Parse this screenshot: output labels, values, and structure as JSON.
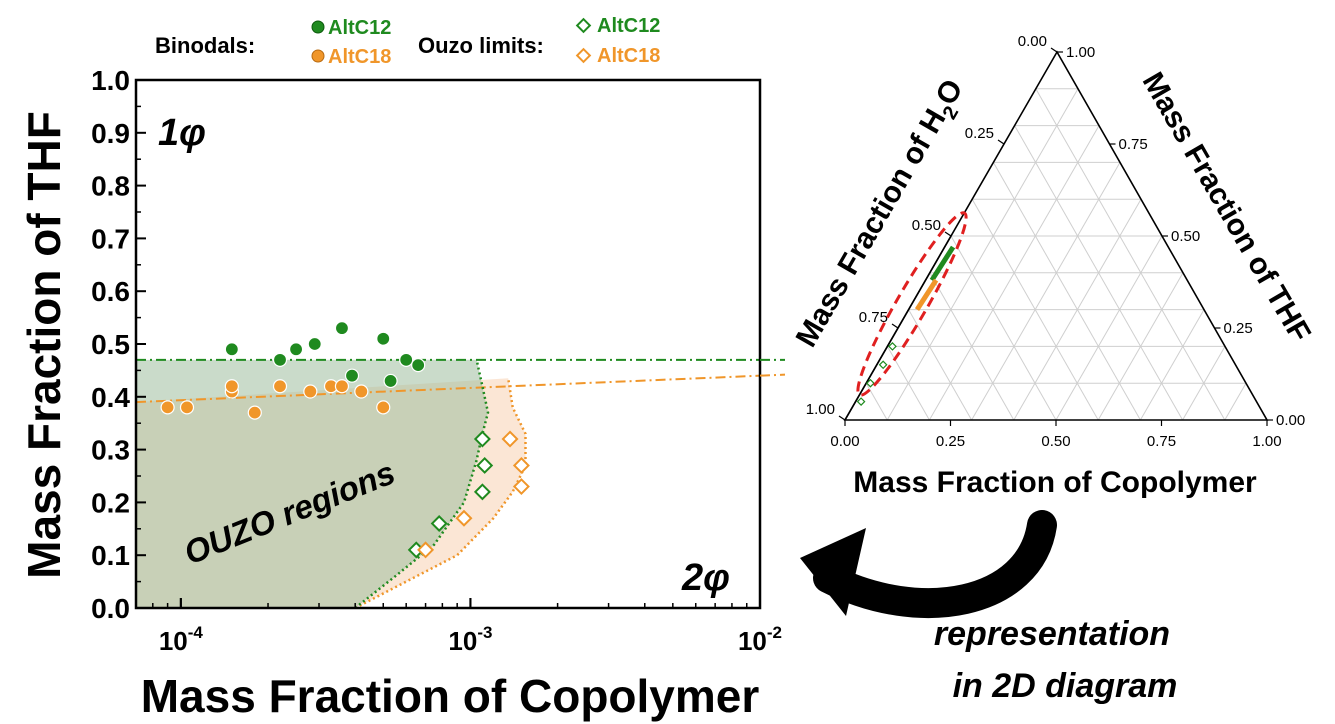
{
  "chart_data": [
    {
      "type": "scatter",
      "xscale": "log",
      "xlabel": "Mass Fraction of Copolymer",
      "ylabel": "Mass Fraction of THF",
      "xlim": [
        7e-05,
        0.01
      ],
      "ylim": [
        0,
        1.0
      ],
      "x_ticks": [
        0.0001,
        0.001,
        0.01
      ],
      "x_tick_labels": [
        {
          "base": "10",
          "exp": "-4"
        },
        {
          "base": "10",
          "exp": "-3"
        },
        {
          "base": "10",
          "exp": "-2"
        }
      ],
      "y_ticks": [
        "0.0",
        "0.1",
        "0.2",
        "0.3",
        "0.4",
        "0.5",
        "0.6",
        "0.7",
        "0.8",
        "0.9",
        "1.0"
      ],
      "legend": {
        "binodals_label": "Binodals:",
        "ouzo_label": "Ouzo limits:",
        "entries": [
          "AltC12",
          "AltC18"
        ]
      },
      "annotations": {
        "one_phase": "1φ",
        "two_phase": "2φ",
        "region": "OUZO regions"
      },
      "colors": {
        "AltC12": "#1f8a1f",
        "AltC18": "#f0962a"
      },
      "binodal_lines": [
        {
          "name": "AltC12",
          "y": 0.47
        },
        {
          "name": "AltC18",
          "x": [
            7e-05,
            0.01
          ],
          "y": [
            0.39,
            0.44
          ]
        }
      ],
      "ouzo_boundaries": [
        {
          "name": "AltC12",
          "x": [
            0.0004,
            0.00055,
            0.00075,
            0.00095,
            0.00105,
            0.0011,
            0.00115,
            0.0011,
            0.00105
          ],
          "y": [
            0.0,
            0.06,
            0.12,
            0.2,
            0.28,
            0.33,
            0.37,
            0.42,
            0.47
          ]
        },
        {
          "name": "AltC18",
          "x": [
            0.0004,
            0.0006,
            0.0009,
            0.0012,
            0.0014,
            0.00155,
            0.00155,
            0.0014,
            0.00135
          ],
          "y": [
            0.0,
            0.05,
            0.1,
            0.17,
            0.22,
            0.27,
            0.33,
            0.38,
            0.435
          ]
        }
      ],
      "series": [
        {
          "name": "AltC12",
          "kind": "binodal",
          "points": [
            [
              0.00015,
              0.49
            ],
            [
              0.00022,
              0.47
            ],
            [
              0.00025,
              0.49
            ],
            [
              0.00029,
              0.5
            ],
            [
              0.00036,
              0.53
            ],
            [
              0.00039,
              0.44
            ],
            [
              0.0005,
              0.51
            ],
            [
              0.00053,
              0.43
            ],
            [
              0.0006,
              0.47
            ],
            [
              0.00066,
              0.46
            ]
          ]
        },
        {
          "name": "AltC18",
          "kind": "binodal",
          "points": [
            [
              9e-05,
              0.38
            ],
            [
              0.000105,
              0.38
            ],
            [
              0.00015,
              0.41
            ],
            [
              0.00015,
              0.42
            ],
            [
              0.00018,
              0.37
            ],
            [
              0.00022,
              0.42
            ],
            [
              0.00028,
              0.41
            ],
            [
              0.00033,
              0.42
            ],
            [
              0.00036,
              0.42
            ],
            [
              0.00042,
              0.41
            ],
            [
              0.0005,
              0.38
            ]
          ]
        },
        {
          "name": "AltC12",
          "kind": "ouzo_limit",
          "points": [
            [
              0.00065,
              0.11
            ],
            [
              0.00078,
              0.16
            ],
            [
              0.0011,
              0.32
            ],
            [
              0.00112,
              0.27
            ],
            [
              0.0011,
              0.22
            ]
          ]
        },
        {
          "name": "AltC18",
          "kind": "ouzo_limit",
          "points": [
            [
              0.0007,
              0.11
            ],
            [
              0.00095,
              0.17
            ],
            [
              0.00137,
              0.32
            ],
            [
              0.0015,
              0.27
            ],
            [
              0.0015,
              0.23
            ]
          ]
        }
      ]
    },
    {
      "type": "ternary",
      "axes": {
        "bottom": "Mass Fraction of Copolymer",
        "right": "Mass Fraction of THF",
        "left": "Mass Fraction of H",
        "left_sub": "2",
        "left_end": "O"
      },
      "tick_labels": [
        "0.00",
        "0.25",
        "0.50",
        "0.75",
        "1.00"
      ],
      "grid_fractions": [
        0.1,
        0.2,
        0.3,
        0.4,
        0.5,
        0.6,
        0.7,
        0.8,
        0.9
      ],
      "data_region": {
        "copolymer": [
          0.0,
          0.03
        ],
        "thf": [
          0.0,
          0.5
        ]
      }
    }
  ],
  "caption": {
    "line1": "representation",
    "line2": "in 2D diagram"
  }
}
